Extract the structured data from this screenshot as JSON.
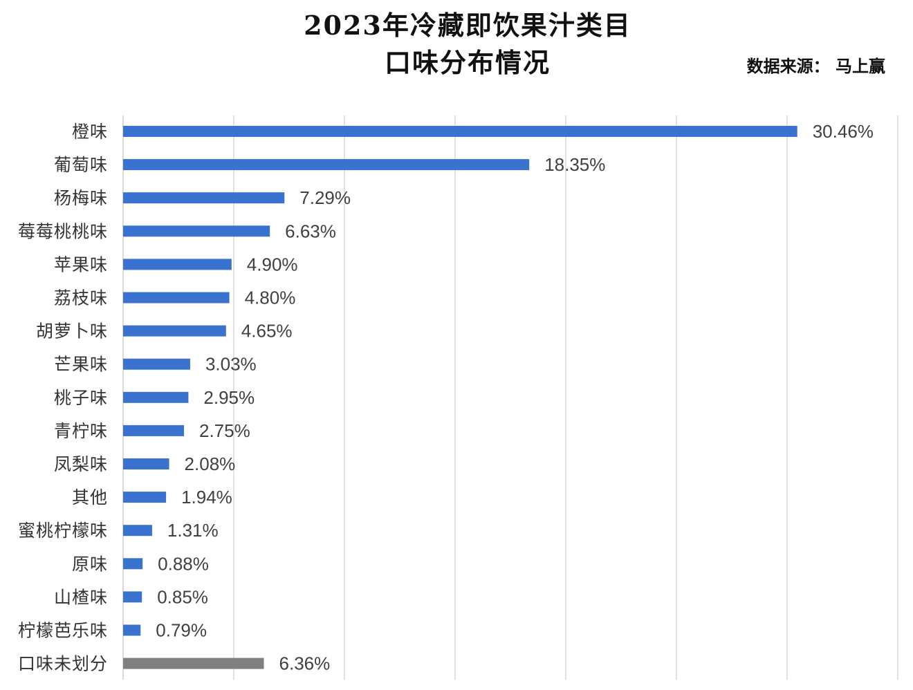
{
  "header": {
    "title_line1": "2023年冷藏即饮果汁类目",
    "title_line2": "口味分布情况",
    "source": "数据来源：  马上赢"
  },
  "colors": {
    "bar": "#3a73cf",
    "bar_other": "#808080",
    "grid": "#d9d9d9"
  },
  "chart_data": {
    "type": "bar",
    "orientation": "horizontal",
    "title": "2023年冷藏即饮果汁类目 口味分布情况",
    "xlim": [
      0,
      35
    ],
    "grid": true,
    "categories": [
      "橙味",
      "葡萄味",
      "杨梅味",
      "莓莓桃桃味",
      "苹果味",
      "荔枝味",
      "胡萝卜味",
      "芒果味",
      "桃子味",
      "青柠味",
      "凤梨味",
      "其他",
      "蜜桃柠檬味",
      "原味",
      "山楂味",
      "柠檬芭乐味",
      "口味未划分"
    ],
    "values": [
      30.46,
      18.35,
      7.29,
      6.63,
      4.9,
      4.8,
      4.65,
      3.03,
      2.95,
      2.75,
      2.08,
      1.94,
      1.31,
      0.88,
      0.85,
      0.79,
      6.36
    ],
    "value_labels": [
      "30.46%",
      "18.35%",
      "7.29%",
      "6.63%",
      "4.90%",
      "4.80%",
      "4.65%",
      "3.03%",
      "2.95%",
      "2.75%",
      "2.08%",
      "1.94%",
      "1.31%",
      "0.88%",
      "0.85%",
      "0.79%",
      "6.36%"
    ],
    "highlight_gray": [
      "口味未划分"
    ]
  }
}
